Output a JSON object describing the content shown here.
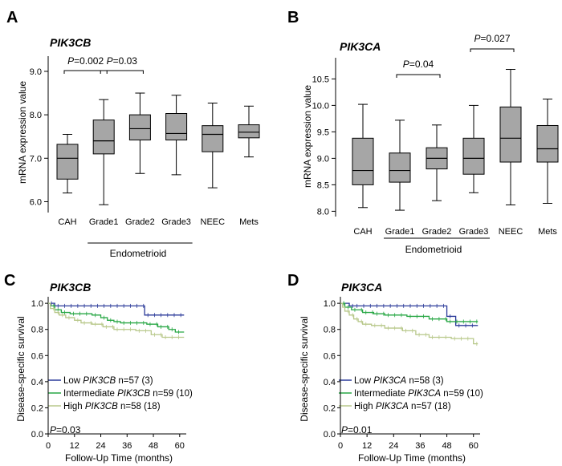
{
  "colors": {
    "box_fill": "#a6a6a6",
    "low": "#2b3a9a",
    "intermediate": "#28a745",
    "high": "#b8c88a"
  },
  "chart_data": [
    {
      "panel": "A",
      "type": "box",
      "title": "PIK3CB",
      "ylabel": "mRNA expression value",
      "ylim": [
        5.75,
        9.35
      ],
      "yticks": [
        "6.0",
        "7.0",
        "8.0",
        "9.0"
      ],
      "categories": [
        "CAH",
        "Grade1",
        "Grade2",
        "Grade3",
        "NEEC",
        "Mets"
      ],
      "boxes": [
        {
          "min": 6.2,
          "q1": 6.52,
          "median": 7.0,
          "q3": 7.32,
          "max": 7.55
        },
        {
          "min": 5.93,
          "q1": 7.1,
          "median": 7.4,
          "q3": 7.88,
          "max": 8.35
        },
        {
          "min": 6.65,
          "q1": 7.42,
          "median": 7.68,
          "q3": 8.0,
          "max": 8.5
        },
        {
          "min": 6.62,
          "q1": 7.42,
          "median": 7.57,
          "q3": 8.03,
          "max": 8.45
        },
        {
          "min": 6.32,
          "q1": 7.15,
          "median": 7.55,
          "q3": 7.75,
          "max": 8.27
        },
        {
          "min": 7.03,
          "q1": 7.47,
          "median": 7.6,
          "q3": 7.77,
          "max": 8.2
        }
      ],
      "group_label": "Endometrioid",
      "group_span": [
        1,
        3
      ],
      "comparisons": [
        {
          "from": 0,
          "to": 1,
          "p_prefix": "P",
          "p_value": "=0.002"
        },
        {
          "from": 1,
          "to": 2,
          "p_prefix": "P",
          "p_value": "=0.03"
        }
      ]
    },
    {
      "panel": "B",
      "type": "box",
      "title": "PIK3CA",
      "ylabel": "mRNA expression value",
      "ylim": [
        7.9,
        10.9
      ],
      "yticks": [
        "8.0",
        "8.5",
        "9.0",
        "9.5",
        "10.0",
        "10.5"
      ],
      "categories": [
        "CAH",
        "Grade1",
        "Grade2",
        "Grade3",
        "NEEC",
        "Mets"
      ],
      "boxes": [
        {
          "min": 8.07,
          "q1": 8.5,
          "median": 8.77,
          "q3": 9.38,
          "max": 10.02
        },
        {
          "min": 8.02,
          "q1": 8.55,
          "median": 8.77,
          "q3": 9.1,
          "max": 9.72
        },
        {
          "min": 8.2,
          "q1": 8.8,
          "median": 9.0,
          "q3": 9.2,
          "max": 9.63
        },
        {
          "min": 8.35,
          "q1": 8.7,
          "median": 9.0,
          "q3": 9.38,
          "max": 10.0
        },
        {
          "min": 8.12,
          "q1": 8.93,
          "median": 9.38,
          "q3": 9.97,
          "max": 10.68
        },
        {
          "min": 8.15,
          "q1": 8.93,
          "median": 9.18,
          "q3": 9.62,
          "max": 10.12
        }
      ],
      "group_label": "Endometrioid",
      "group_span": [
        1,
        3
      ],
      "comparisons": [
        {
          "from": 1,
          "to": 2,
          "p_prefix": "P",
          "p_value": "=0.04"
        },
        {
          "from": 3,
          "to": 4,
          "p_prefix": "P",
          "p_value": "=0.027"
        }
      ]
    },
    {
      "panel": "C",
      "type": "line",
      "title": "PIK3CB",
      "xlabel": "Follow-Up Time (months)",
      "ylabel": "Disease-specific survival",
      "xlim": [
        0,
        63
      ],
      "ylim": [
        0,
        1.05
      ],
      "xticks": [
        "0",
        "12",
        "24",
        "36",
        "48",
        "60"
      ],
      "yticks": [
        "0.0",
        "0.2",
        "0.4",
        "0.6",
        "0.8",
        "1.0"
      ],
      "p_prefix": "P",
      "p_value": "=0.03",
      "series": [
        {
          "group": "low",
          "legend_prefix": "Low ",
          "legend_gene": "PIK3CB",
          "legend_suffix": " n=57 (3)",
          "x": [
            0,
            3,
            44,
            62
          ],
          "y": [
            1.0,
            0.98,
            0.91,
            0.91
          ]
        },
        {
          "group": "intermediate",
          "legend_prefix": "Intermediate ",
          "legend_gene": "PIK3CB",
          "legend_suffix": " n=59 (10)",
          "x": [
            0,
            1,
            3,
            6,
            10,
            20,
            24,
            27,
            30,
            33,
            45,
            50,
            55,
            58,
            62
          ],
          "y": [
            1.0,
            0.98,
            0.95,
            0.93,
            0.92,
            0.91,
            0.89,
            0.87,
            0.86,
            0.85,
            0.84,
            0.82,
            0.8,
            0.78,
            0.78
          ]
        },
        {
          "group": "high",
          "legend_prefix": "High ",
          "legend_gene": "PIK3CB",
          "legend_suffix": " n=58 (18)",
          "x": [
            0,
            1,
            3,
            5,
            8,
            12,
            15,
            20,
            25,
            30,
            40,
            47,
            52,
            62
          ],
          "y": [
            1.0,
            0.96,
            0.93,
            0.91,
            0.89,
            0.87,
            0.85,
            0.84,
            0.82,
            0.8,
            0.79,
            0.76,
            0.74,
            0.74
          ]
        }
      ]
    },
    {
      "panel": "D",
      "type": "line",
      "title": "PIK3CA",
      "xlabel": "Follow-Up Time (months)",
      "ylabel": "Disease-specific survival",
      "xlim": [
        0,
        63
      ],
      "ylim": [
        0,
        1.05
      ],
      "xticks": [
        "0",
        "12",
        "24",
        "36",
        "48",
        "60"
      ],
      "yticks": [
        "0.0",
        "0.2",
        "0.4",
        "0.6",
        "0.8",
        "1.0"
      ],
      "p_prefix": "P",
      "p_value": "=0.01",
      "series": [
        {
          "group": "low",
          "legend_prefix": "Low ",
          "legend_gene": "PIK3CA",
          "legend_suffix": " n=58 (3)",
          "x": [
            0,
            4,
            6,
            48,
            52,
            62
          ],
          "y": [
            1.0,
            0.98,
            0.98,
            0.9,
            0.83,
            0.83
          ]
        },
        {
          "group": "intermediate",
          "legend_prefix": "Intermediate ",
          "legend_gene": "PIK3CA",
          "legend_suffix": " n=59 (10)",
          "x": [
            0,
            2,
            5,
            10,
            15,
            20,
            30,
            40,
            48,
            62
          ],
          "y": [
            1.0,
            0.97,
            0.95,
            0.93,
            0.92,
            0.91,
            0.9,
            0.88,
            0.86,
            0.86
          ]
        },
        {
          "group": "high",
          "legend_prefix": "High ",
          "legend_gene": "PIK3CA",
          "legend_suffix": " n=57 (18)",
          "x": [
            0,
            1,
            2,
            4,
            6,
            8,
            10,
            14,
            20,
            28,
            34,
            40,
            50,
            60,
            62
          ],
          "y": [
            1.0,
            0.97,
            0.94,
            0.91,
            0.88,
            0.86,
            0.84,
            0.83,
            0.81,
            0.79,
            0.76,
            0.74,
            0.73,
            0.69,
            0.69
          ]
        }
      ]
    }
  ]
}
